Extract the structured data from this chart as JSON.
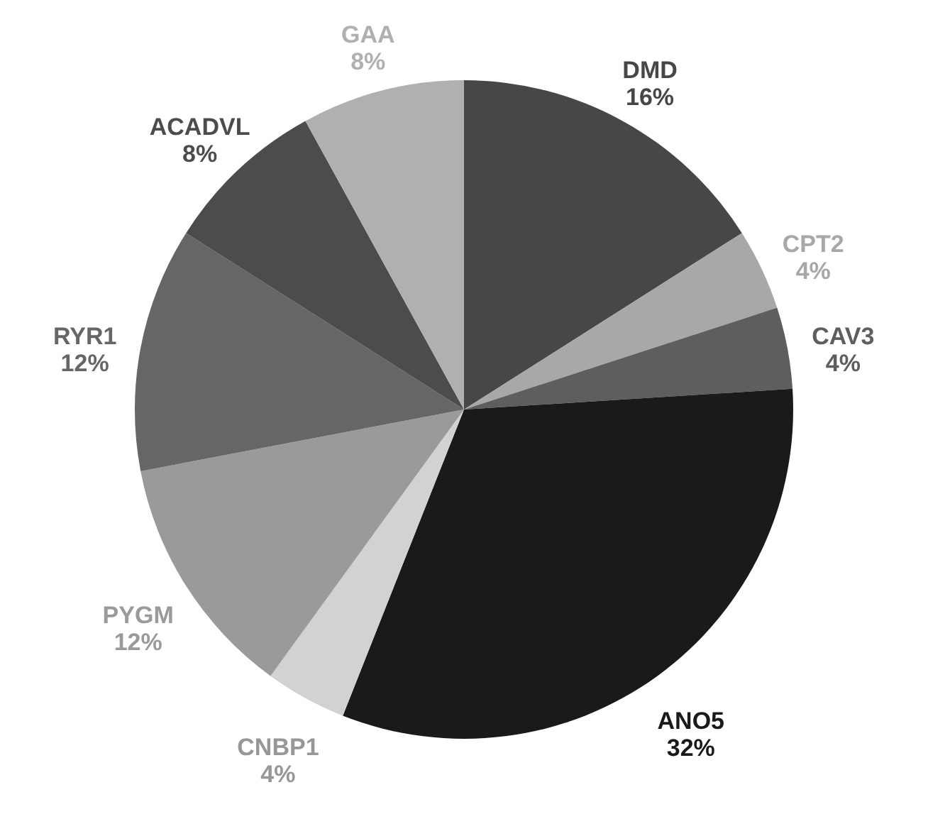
{
  "chart_data": {
    "type": "pie",
    "categories": [
      "DMD",
      "CPT2",
      "CAV3",
      "ANO5",
      "CNBP1",
      "PYGM",
      "RYR1",
      "ACADVL",
      "GAA"
    ],
    "values": [
      16,
      4,
      4,
      32,
      4,
      12,
      12,
      8,
      8
    ],
    "value_labels": [
      "16%",
      "4%",
      "4%",
      "32%",
      "4%",
      "12%",
      "12%",
      "8%",
      "8%"
    ],
    "colors": [
      "#474747",
      "#a8a8a8",
      "#5e5e5e",
      "#1a1a1a",
      "#d2d2d2",
      "#9a9a9a",
      "#666666",
      "#4c4c4c",
      "#b0b0b0"
    ],
    "legend": false
  }
}
